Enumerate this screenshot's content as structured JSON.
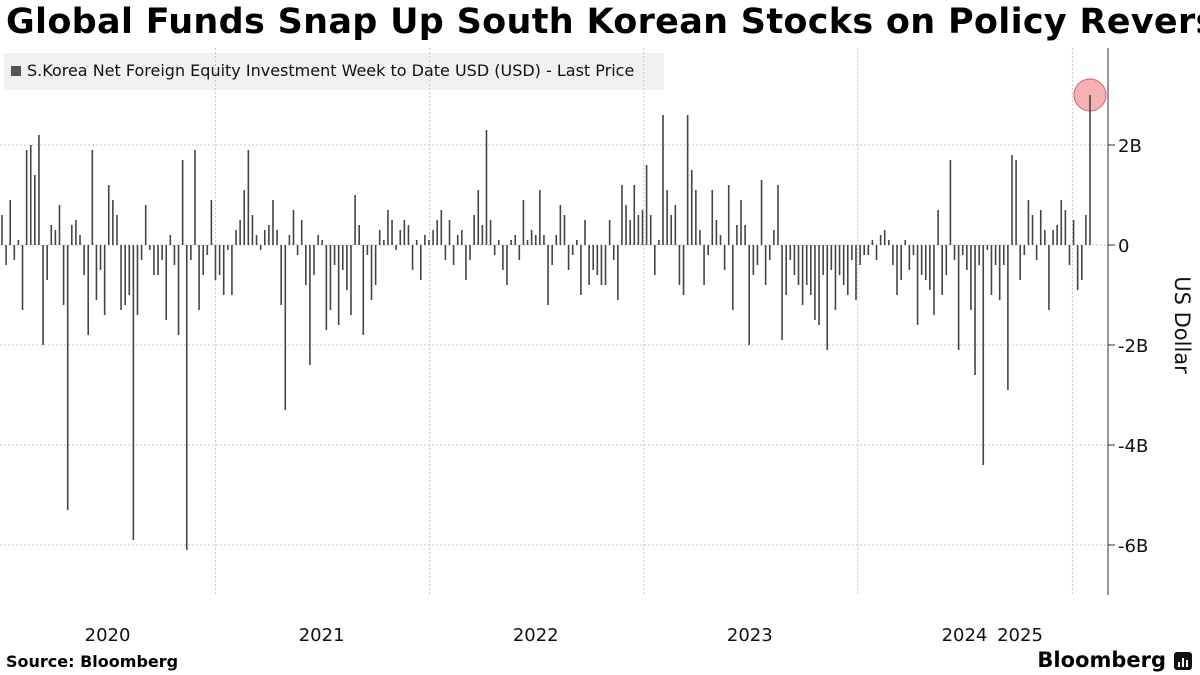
{
  "title": "Global Funds Snap Up South Korean Stocks on Policy Reversal",
  "legend": {
    "label": "S.Korea Net Foreign Equity Investment Week to Date USD (USD) - Last Price"
  },
  "source": "Source: Bloomberg",
  "brand": "Bloomberg",
  "colors": {
    "bar": "#444444",
    "grid": "#c8c8c8",
    "highlight": "#f4a3a8",
    "legend_bg": "#f1f1f1"
  },
  "chart_data": {
    "type": "bar",
    "title": "Global Funds Snap Up South Korean Stocks on Policy Reversal",
    "ylabel": "US Dollar",
    "yunit": "billions USD",
    "ylim": [
      -7,
      3.8
    ],
    "yticks": [
      {
        "value": 2,
        "label": "2B"
      },
      {
        "value": 0,
        "label": "0"
      },
      {
        "value": -2,
        "label": "-2B"
      },
      {
        "value": -4,
        "label": "-4B"
      },
      {
        "value": -6,
        "label": "-6B"
      }
    ],
    "xticks": [
      "2020",
      "2021",
      "2022",
      "2023",
      "2024",
      "2025"
    ],
    "x_start": "2020-01-03",
    "frequency": "weekly",
    "grid": true,
    "legend_position": "top-left",
    "highlight_last": true,
    "series": [
      {
        "name": "S.Korea Net Foreign Equity Investment Week to Date USD (USD) - Last Price",
        "values": [
          0.6,
          -0.4,
          0.9,
          -0.3,
          0.1,
          -1.3,
          1.9,
          2.0,
          1.4,
          2.2,
          -2.0,
          -0.7,
          0.4,
          0.3,
          0.8,
          -1.2,
          -5.3,
          0.4,
          0.5,
          0.2,
          -0.6,
          -1.8,
          1.9,
          -1.1,
          -0.5,
          -1.4,
          1.2,
          0.9,
          0.6,
          -1.3,
          -1.2,
          -1.0,
          -5.9,
          -1.4,
          -0.3,
          0.8,
          -0.1,
          -0.6,
          -0.6,
          -0.3,
          -1.5,
          0.2,
          -0.4,
          -1.8,
          1.7,
          -6.1,
          -0.3,
          1.9,
          -1.3,
          -0.6,
          -0.2,
          0.9,
          -0.7,
          -0.6,
          -1.0,
          -0.1,
          -1.0,
          0.3,
          0.5,
          1.1,
          1.9,
          0.6,
          0.2,
          -0.1,
          0.3,
          0.4,
          0.9,
          0.3,
          -1.2,
          -3.3,
          0.2,
          0.7,
          -0.2,
          0.5,
          -0.8,
          -2.4,
          -0.6,
          0.2,
          0.1,
          -1.7,
          -1.3,
          -0.4,
          -1.6,
          -0.5,
          -0.9,
          -1.4,
          1.0,
          0.4,
          -1.8,
          -0.2,
          -1.1,
          -0.8,
          0.3,
          0.1,
          0.7,
          0.5,
          -0.1,
          0.3,
          0.5,
          0.4,
          -0.5,
          0.1,
          -0.7,
          0.2,
          0.1,
          0.3,
          0.5,
          0.7,
          -0.3,
          0.5,
          -0.4,
          0.2,
          0.3,
          -0.7,
          -0.3,
          0.6,
          1.1,
          0.4,
          2.3,
          0.5,
          -0.2,
          0.1,
          -0.5,
          -0.8,
          0.1,
          0.2,
          -0.3,
          0.9,
          0.1,
          0.3,
          0.2,
          1.1,
          0.2,
          -1.2,
          -0.4,
          0.2,
          0.8,
          0.6,
          -0.5,
          -0.2,
          0.1,
          -1.0,
          0.5,
          -0.8,
          -0.5,
          -0.6,
          -0.8,
          -0.8,
          0.5,
          -0.3,
          -1.1,
          1.2,
          0.8,
          0.5,
          1.2,
          0.6,
          0.7,
          1.6,
          0.6,
          -0.6,
          0.1,
          2.6,
          1.1,
          0.6,
          0.8,
          -0.8,
          -1.0,
          2.6,
          1.5,
          1.1,
          0.3,
          -0.8,
          -0.2,
          1.1,
          0.5,
          0.2,
          -0.5,
          1.2,
          -1.3,
          0.4,
          0.9,
          0.4,
          -2.0,
          -0.6,
          -0.4,
          1.3,
          -0.8,
          -0.3,
          0.3,
          1.2,
          -1.9,
          -1.0,
          -0.3,
          -0.6,
          -0.8,
          -1.2,
          -0.8,
          -1.0,
          -1.5,
          -1.6,
          -0.6,
          -2.1,
          -0.5,
          -1.3,
          -0.6,
          -0.8,
          -1.0,
          -0.3,
          -1.1,
          -0.4,
          -0.2,
          -0.2,
          0.1,
          -0.3,
          0.2,
          0.3,
          0.1,
          -0.4,
          -1.0,
          -0.7,
          0.1,
          -0.5,
          -0.2,
          -1.6,
          -0.6,
          -0.7,
          -0.9,
          -1.4,
          0.7,
          -1.0,
          -0.6,
          1.7,
          -0.3,
          -2.1,
          -0.2,
          -0.5,
          -1.3,
          -2.6,
          -0.4,
          -4.4,
          -0.1,
          -1.0,
          -0.4,
          -1.1,
          -0.4,
          -2.9,
          1.8,
          1.7,
          -0.7,
          -0.2,
          0.9,
          0.6,
          -0.3,
          0.7,
          0.3,
          -1.3,
          0.3,
          0.4,
          0.9,
          0.7,
          -0.4,
          0.5,
          -0.9,
          -0.7,
          0.6,
          3.0
        ]
      }
    ]
  }
}
